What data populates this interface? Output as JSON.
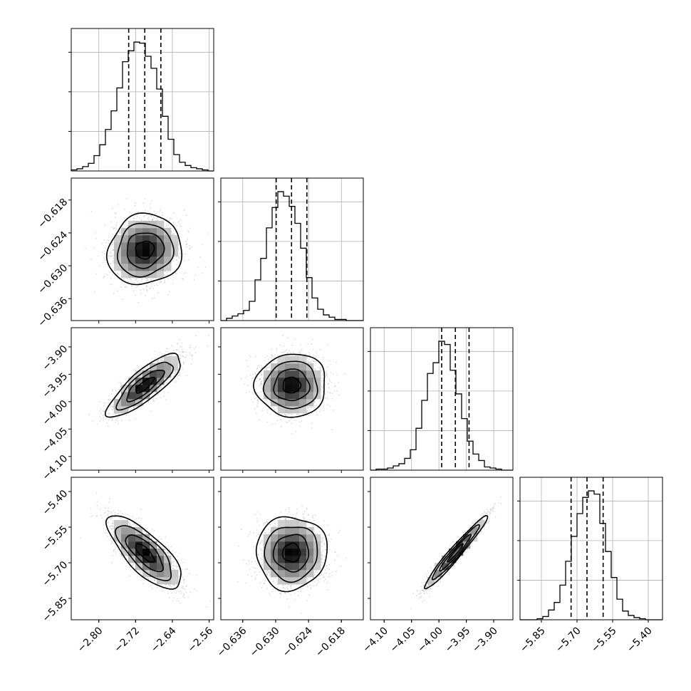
{
  "chart_data": {
    "type": "corner",
    "parameters": [
      {
        "index": 0,
        "range": [
          -2.86,
          -2.55
        ],
        "ticks": [
          -2.8,
          -2.72,
          -2.64,
          -2.56
        ],
        "tick_labels": [
          "−2.80",
          "−2.72",
          "−2.64",
          "−2.56"
        ],
        "quantiles": [
          -2.735,
          -2.7,
          -2.665
        ]
      },
      {
        "index": 1,
        "range": [
          -0.64,
          -0.614
        ],
        "ticks": [
          -0.636,
          -0.63,
          -0.624,
          -0.618
        ],
        "tick_labels": [
          "−0.636",
          "−0.630",
          "−0.624",
          "−0.618"
        ],
        "quantiles": [
          -0.6299,
          -0.6271,
          -0.6243
        ]
      },
      {
        "index": 2,
        "range": [
          -4.125,
          -3.865
        ],
        "ticks": [
          -4.1,
          -4.05,
          -4.0,
          -3.95,
          -3.9
        ],
        "tick_labels": [
          "−4.10",
          "−4.05",
          "−4.00",
          "−3.95",
          "−3.90"
        ],
        "quantiles": [
          -3.995,
          -3.97,
          -3.945
        ]
      },
      {
        "index": 3,
        "range": [
          -5.94,
          -5.34
        ],
        "ticks": [
          -5.85,
          -5.7,
          -5.55,
          -5.4
        ],
        "tick_labels": [
          "−5.85",
          "−5.70",
          "−5.55",
          "−5.40"
        ],
        "quantiles": [
          -5.725,
          -5.658,
          -5.59
        ]
      }
    ],
    "histograms": [
      {
        "parameter": 0,
        "counts": [
          1,
          2,
          4,
          7,
          14,
          24,
          38,
          55,
          76,
          100,
          110,
          118,
          117,
          105,
          94,
          75,
          50,
          29,
          15,
          8,
          5,
          3,
          2,
          1,
          0
        ]
      },
      {
        "parameter": 1,
        "counts": [
          0,
          2,
          4,
          6,
          9,
          17,
          36,
          55,
          82,
          100,
          114,
          110,
          101,
          86,
          64,
          38,
          20,
          10,
          5,
          3,
          1,
          1,
          0,
          0,
          0
        ]
      },
      {
        "parameter": 2,
        "counts": [
          0,
          1,
          1,
          2,
          4,
          6,
          11,
          19,
          39,
          65,
          90,
          100,
          120,
          117,
          93,
          71,
          48,
          27,
          15,
          9,
          3,
          2,
          1,
          0,
          0
        ]
      },
      {
        "parameter": 3,
        "counts": [
          0,
          0,
          0,
          1,
          3,
          9,
          16,
          32,
          54,
          77,
          98,
          113,
          119,
          116,
          89,
          63,
          39,
          19,
          8,
          4,
          2,
          1,
          0,
          0,
          0
        ]
      }
    ],
    "pairs": [
      {
        "x": 0,
        "y": 1,
        "mean": [
          -2.7,
          -0.6271
        ],
        "sd": [
          0.035,
          0.0028
        ],
        "corr": 0.08
      },
      {
        "x": 0,
        "y": 2,
        "mean": [
          -2.7,
          -3.97
        ],
        "sd": [
          0.035,
          0.025
        ],
        "corr": 0.82
      },
      {
        "x": 1,
        "y": 2,
        "mean": [
          -0.6271,
          -3.97
        ],
        "sd": [
          0.0028,
          0.025
        ],
        "corr": 0.02
      },
      {
        "x": 0,
        "y": 3,
        "mean": [
          -2.7,
          -5.658
        ],
        "sd": [
          0.035,
          0.067
        ],
        "corr": -0.75
      },
      {
        "x": 1,
        "y": 3,
        "mean": [
          -0.6271,
          -5.658
        ],
        "sd": [
          0.0028,
          0.067
        ],
        "corr": 0.02
      },
      {
        "x": 2,
        "y": 3,
        "mean": [
          -3.97,
          -5.658
        ],
        "sd": [
          0.025,
          0.067
        ],
        "corr": 0.97
      }
    ],
    "contour_levels_sigma": [
      0.5,
      1,
      1.5,
      2
    ],
    "grid": true,
    "colors": {
      "points": "#888888",
      "density": "#000000",
      "lines": "#000000",
      "grid": "#b0b0b0"
    }
  }
}
